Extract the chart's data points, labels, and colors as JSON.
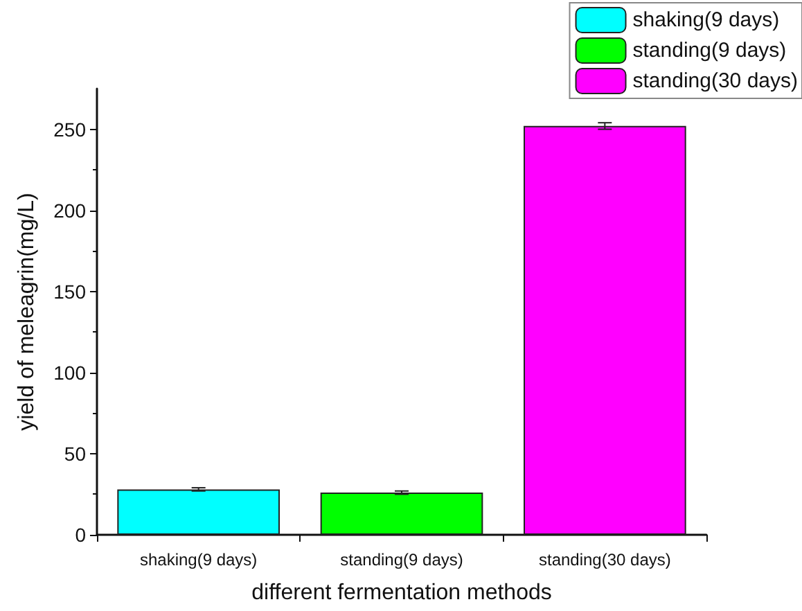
{
  "chart_data": {
    "type": "bar",
    "xlabel": "different fermentation methods",
    "ylabel": "yield of meleagrin(mg/L)",
    "categories": [
      "shaking(9 days)",
      "standing(9 days)",
      "standing(30 days)"
    ],
    "series": [
      {
        "name": "shaking(9 days)",
        "color": "#00ffff",
        "values": [
          28,
          null,
          null
        ],
        "errors": [
          1,
          null,
          null
        ]
      },
      {
        "name": "standing(9 days)",
        "color": "#00ff00",
        "values": [
          null,
          26,
          null
        ],
        "errors": [
          null,
          1,
          null
        ]
      },
      {
        "name": "standing(30 days)",
        "color": "#ff00ff",
        "values": [
          null,
          null,
          252
        ],
        "errors": [
          null,
          null,
          2
        ]
      }
    ],
    "ylim": [
      0,
      275
    ],
    "yticks": [
      0,
      50,
      100,
      150,
      200,
      250
    ],
    "grid": false,
    "legend": "top right"
  }
}
